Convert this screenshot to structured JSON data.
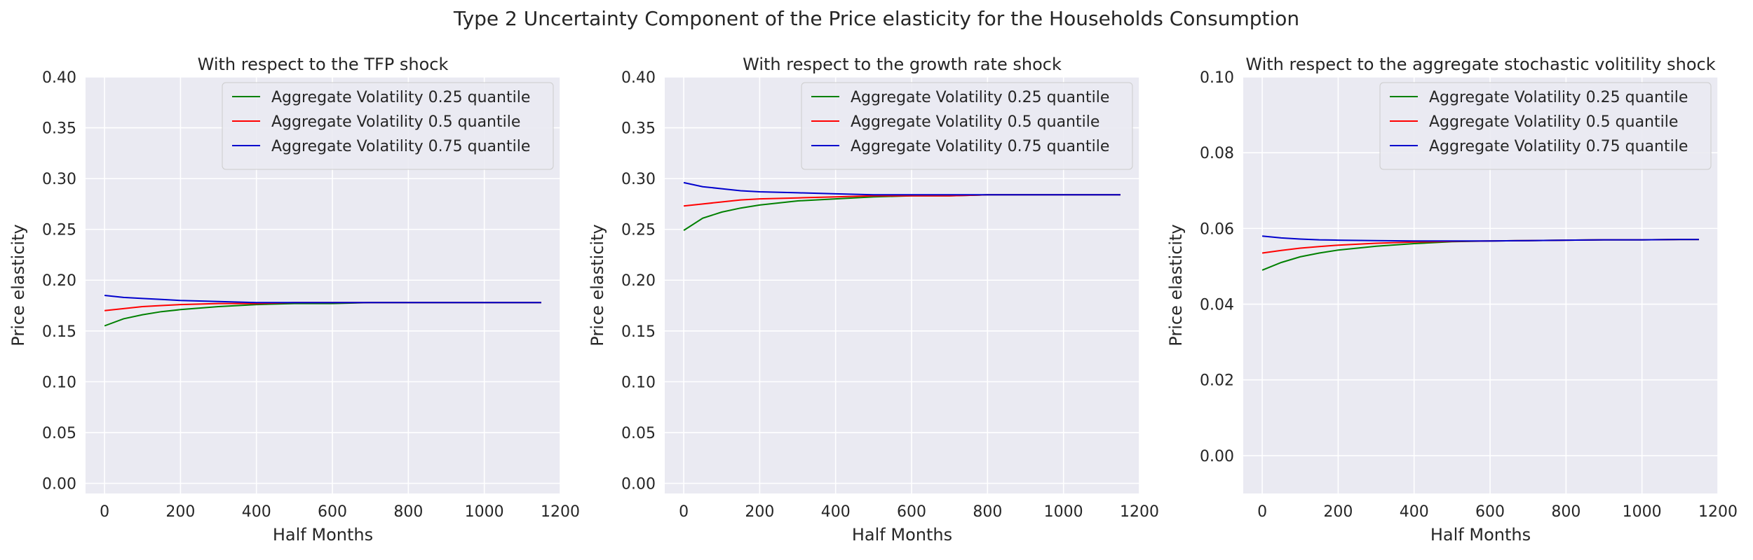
{
  "figure_title": "Type 2 Uncertainty Component of the Price elasticity for the Households Consumption",
  "colors": {
    "plot_bg": "#eaeaf2",
    "grid": "#ffffff",
    "q25": "#008000",
    "q50": "#ff0000",
    "q75": "#0000cd"
  },
  "chart_data": [
    {
      "type": "line",
      "title": "With respect to the TFP shock",
      "xlabel": "Half Months",
      "ylabel": "Price elasticity",
      "xlim": [
        -50,
        1200
      ],
      "ylim": [
        -0.01,
        0.4
      ],
      "xticks": [
        0,
        200,
        400,
        600,
        800,
        1000,
        1200
      ],
      "xtick_labels": [
        "0",
        "200",
        "400",
        "600",
        "800",
        "1000",
        "1200"
      ],
      "yticks": [
        0.0,
        0.05,
        0.1,
        0.15,
        0.2,
        0.25,
        0.3,
        0.35,
        0.4
      ],
      "ytick_labels": [
        "0.00",
        "0.05",
        "0.10",
        "0.15",
        "0.20",
        "0.25",
        "0.30",
        "0.35",
        "0.40"
      ],
      "grid": true,
      "legend_position": "top-right",
      "x": [
        0,
        50,
        100,
        150,
        200,
        300,
        400,
        500,
        600,
        700,
        800,
        900,
        1000,
        1100,
        1150
      ],
      "series": [
        {
          "name": "Aggregate Volatility 0.25 quantile",
          "color": "#008000",
          "values": [
            0.155,
            0.162,
            0.166,
            0.169,
            0.171,
            0.174,
            0.176,
            0.177,
            0.177,
            0.178,
            0.178,
            0.178,
            0.178,
            0.178,
            0.178
          ]
        },
        {
          "name": "Aggregate Volatility 0.5 quantile",
          "color": "#ff0000",
          "values": [
            0.17,
            0.172,
            0.174,
            0.175,
            0.176,
            0.177,
            0.177,
            0.178,
            0.178,
            0.178,
            0.178,
            0.178,
            0.178,
            0.178,
            0.178
          ]
        },
        {
          "name": "Aggregate Volatility 0.75 quantile",
          "color": "#0000cd",
          "values": [
            0.185,
            0.183,
            0.182,
            0.181,
            0.18,
            0.179,
            0.178,
            0.178,
            0.178,
            0.178,
            0.178,
            0.178,
            0.178,
            0.178,
            0.178
          ]
        }
      ]
    },
    {
      "type": "line",
      "title": "With respect to the growth rate shock",
      "xlabel": "Half Months",
      "ylabel": "Price elasticity",
      "xlim": [
        -50,
        1200
      ],
      "ylim": [
        -0.01,
        0.4
      ],
      "xticks": [
        0,
        200,
        400,
        600,
        800,
        1000,
        1200
      ],
      "xtick_labels": [
        "0",
        "200",
        "400",
        "600",
        "800",
        "1000",
        "1200"
      ],
      "yticks": [
        0.0,
        0.05,
        0.1,
        0.15,
        0.2,
        0.25,
        0.3,
        0.35,
        0.4
      ],
      "ytick_labels": [
        "0.00",
        "0.05",
        "0.10",
        "0.15",
        "0.20",
        "0.25",
        "0.30",
        "0.35",
        "0.40"
      ],
      "grid": true,
      "legend_position": "top-right",
      "x": [
        0,
        50,
        100,
        150,
        200,
        300,
        400,
        500,
        600,
        700,
        800,
        900,
        1000,
        1100,
        1150
      ],
      "series": [
        {
          "name": "Aggregate Volatility 0.25 quantile",
          "color": "#008000",
          "values": [
            0.249,
            0.261,
            0.267,
            0.271,
            0.274,
            0.278,
            0.28,
            0.282,
            0.283,
            0.283,
            0.284,
            0.284,
            0.284,
            0.284,
            0.284
          ]
        },
        {
          "name": "Aggregate Volatility 0.5 quantile",
          "color": "#ff0000",
          "values": [
            0.273,
            0.275,
            0.277,
            0.279,
            0.28,
            0.281,
            0.282,
            0.283,
            0.283,
            0.283,
            0.284,
            0.284,
            0.284,
            0.284,
            0.284
          ]
        },
        {
          "name": "Aggregate Volatility 0.75 quantile",
          "color": "#0000cd",
          "values": [
            0.296,
            0.292,
            0.29,
            0.288,
            0.287,
            0.286,
            0.285,
            0.284,
            0.284,
            0.284,
            0.284,
            0.284,
            0.284,
            0.284,
            0.284
          ]
        }
      ]
    },
    {
      "type": "line",
      "title": "With respect to the aggregate stochastic volitility shock",
      "xlabel": "Half Months",
      "ylabel": "Price elasticity",
      "xlim": [
        -50,
        1200
      ],
      "ylim": [
        -0.01,
        0.1
      ],
      "xticks": [
        0,
        200,
        400,
        600,
        800,
        1000,
        1200
      ],
      "xtick_labels": [
        "0",
        "200",
        "400",
        "600",
        "800",
        "1000",
        "1200"
      ],
      "yticks": [
        0.0,
        0.02,
        0.04,
        0.06,
        0.08,
        0.1
      ],
      "ytick_labels": [
        "0.00",
        "0.02",
        "0.04",
        "0.06",
        "0.08",
        "0.10"
      ],
      "grid": true,
      "legend_position": "top-right",
      "x": [
        0,
        50,
        100,
        150,
        200,
        300,
        400,
        500,
        600,
        700,
        800,
        900,
        1000,
        1100,
        1150
      ],
      "series": [
        {
          "name": "Aggregate Volatility 0.25 quantile",
          "color": "#008000",
          "values": [
            0.049,
            0.051,
            0.0525,
            0.0535,
            0.0543,
            0.0553,
            0.056,
            0.0565,
            0.0567,
            0.0568,
            0.0569,
            0.057,
            0.057,
            0.0571,
            0.0571
          ]
        },
        {
          "name": "Aggregate Volatility 0.5 quantile",
          "color": "#ff0000",
          "values": [
            0.0535,
            0.0542,
            0.0548,
            0.0552,
            0.0556,
            0.0561,
            0.0564,
            0.0566,
            0.0567,
            0.0568,
            0.0569,
            0.057,
            0.057,
            0.0571,
            0.0571
          ]
        },
        {
          "name": "Aggregate Volatility 0.75 quantile",
          "color": "#0000cd",
          "values": [
            0.058,
            0.0575,
            0.0572,
            0.057,
            0.0569,
            0.0568,
            0.0567,
            0.0567,
            0.0567,
            0.0568,
            0.0569,
            0.057,
            0.057,
            0.0571,
            0.0571
          ]
        }
      ]
    }
  ]
}
